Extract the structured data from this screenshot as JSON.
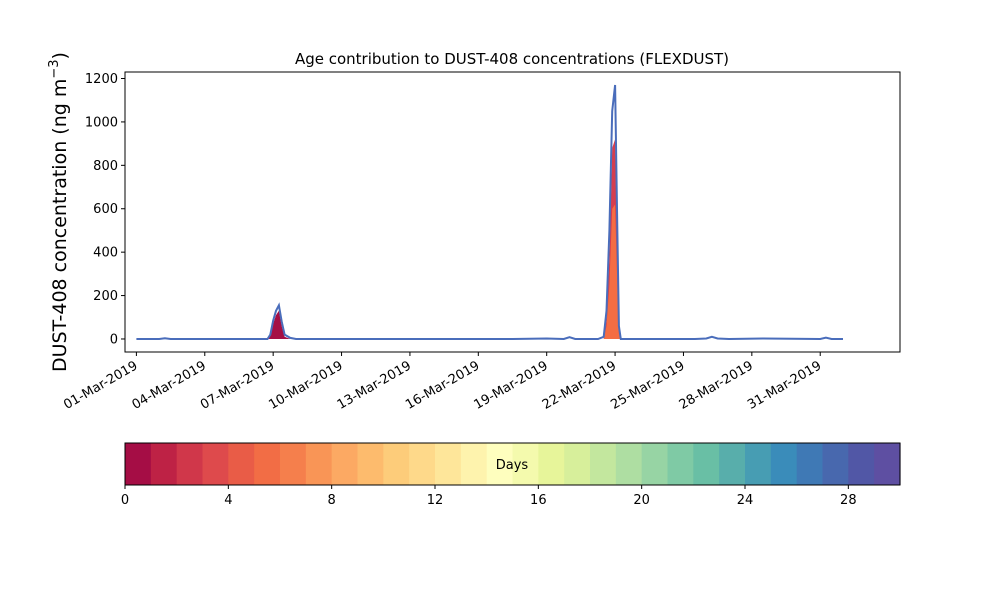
{
  "chart_data": {
    "type": "area",
    "title": "Age contribution to DUST-408 concentrations (FLEXDUST)",
    "ylabel_main": "DUST-408 concentration (ng m",
    "ylabel_sup": "−3",
    "ylabel_close": ")",
    "xlabel": "",
    "ylim": [
      -60,
      1230
    ],
    "xlim": [
      "2019-02-28T12:00",
      "2019-04-03T12:00"
    ],
    "grid": false,
    "y_ticks": [
      0,
      200,
      400,
      600,
      800,
      1000,
      1200
    ],
    "x_ticks": [
      {
        "date": "2019-03-01",
        "label": "01-Mar-2019"
      },
      {
        "date": "2019-03-04",
        "label": "04-Mar-2019"
      },
      {
        "date": "2019-03-07",
        "label": "07-Mar-2019"
      },
      {
        "date": "2019-03-10",
        "label": "10-Mar-2019"
      },
      {
        "date": "2019-03-13",
        "label": "13-Mar-2019"
      },
      {
        "date": "2019-03-16",
        "label": "16-Mar-2019"
      },
      {
        "date": "2019-03-19",
        "label": "19-Mar-2019"
      },
      {
        "date": "2019-03-22",
        "label": "22-Mar-2019"
      },
      {
        "date": "2019-03-25",
        "label": "25-Mar-2019"
      },
      {
        "date": "2019-03-28",
        "label": "28-Mar-2019"
      },
      {
        "date": "2019-03-31",
        "label": "31-Mar-2019"
      }
    ],
    "total_series": {
      "x": [
        "2019-03-01T00:00",
        "2019-03-02T00:00",
        "2019-03-02T06:00",
        "2019-03-02T12:00",
        "2019-03-06T00:00",
        "2019-03-06T18:00",
        "2019-03-06T21:00",
        "2019-03-07T00:00",
        "2019-03-07T03:00",
        "2019-03-07T06:00",
        "2019-03-07T09:00",
        "2019-03-07T12:00",
        "2019-03-07T18:00",
        "2019-03-08T00:00",
        "2019-03-13T00:00",
        "2019-03-17T12:00",
        "2019-03-19T00:00",
        "2019-03-19T18:00",
        "2019-03-20T00:00",
        "2019-03-20T06:00",
        "2019-03-21T06:00",
        "2019-03-21T12:00",
        "2019-03-21T15:00",
        "2019-03-21T18:00",
        "2019-03-21T21:00",
        "2019-03-22T00:00",
        "2019-03-22T02:00",
        "2019-03-22T04:00",
        "2019-03-22T06:00",
        "2019-03-23T00:00",
        "2019-03-24T00:00",
        "2019-03-25T12:00",
        "2019-03-26T00:00",
        "2019-03-26T06:00",
        "2019-03-26T12:00",
        "2019-03-27T00:00",
        "2019-03-28T12:00",
        "2019-03-31T00:00",
        "2019-03-31T06:00",
        "2019-03-31T12:00",
        "2019-04-01T00:00"
      ],
      "values": [
        0,
        0,
        3,
        0,
        0,
        0,
        20,
        85,
        130,
        155,
        80,
        20,
        5,
        0,
        0,
        0,
        2,
        0,
        8,
        0,
        0,
        10,
        130,
        500,
        1050,
        1170,
        600,
        60,
        0,
        0,
        0,
        0,
        2,
        10,
        2,
        0,
        2,
        0,
        6,
        0,
        0
      ]
    },
    "age_bands": [
      {
        "x": [
          "2019-03-06T18:00",
          "2019-03-06T21:00",
          "2019-03-07T00:00",
          "2019-03-07T03:00",
          "2019-03-07T06:00",
          "2019-03-07T09:00",
          "2019-03-07T12:00",
          "2019-03-07T18:00"
        ],
        "values": [
          0,
          15,
          70,
          110,
          130,
          60,
          10,
          0
        ],
        "color": "#a50f44"
      },
      {
        "x": [
          "2019-03-21T12:00",
          "2019-03-21T15:00",
          "2019-03-21T18:00",
          "2019-03-21T21:00",
          "2019-03-22T00:00",
          "2019-03-22T02:00",
          "2019-03-22T04:00",
          "2019-03-22T06:00"
        ],
        "values": [
          0,
          90,
          380,
          880,
          920,
          450,
          40,
          0
        ],
        "color": "#d53e4f"
      },
      {
        "x": [
          "2019-03-21T12:00",
          "2019-03-21T15:00",
          "2019-03-21T18:00",
          "2019-03-21T21:00",
          "2019-03-22T00:00",
          "2019-03-22T02:00",
          "2019-03-22T04:00",
          "2019-03-22T06:00"
        ],
        "values": [
          0,
          60,
          250,
          600,
          620,
          300,
          25,
          0
        ],
        "color": "#f46d43"
      }
    ],
    "line_color": "#4a6dbb",
    "colorbar": {
      "label": "Days",
      "min": 0,
      "max": 30,
      "ticks": [
        0,
        4,
        8,
        12,
        16,
        20,
        24,
        28
      ],
      "colors": [
        "#a50d45",
        "#be2245",
        "#d0374a",
        "#de4a4c",
        "#e95c47",
        "#f26d45",
        "#f57f4c",
        "#f99556",
        "#fca963",
        "#fdbb6d",
        "#fdcc7a",
        "#fed98a",
        "#fee69a",
        "#fef3ad",
        "#fefebe",
        "#f4faad",
        "#e7f59a",
        "#d7ef9b",
        "#c3e79e",
        "#aedea2",
        "#97d4a4",
        "#7fcaa5",
        "#69bfa5",
        "#58aeab",
        "#479db3",
        "#3a8cba",
        "#3f79b5",
        "#4868ae",
        "#5157a6",
        "#5e4fa2"
      ]
    }
  }
}
